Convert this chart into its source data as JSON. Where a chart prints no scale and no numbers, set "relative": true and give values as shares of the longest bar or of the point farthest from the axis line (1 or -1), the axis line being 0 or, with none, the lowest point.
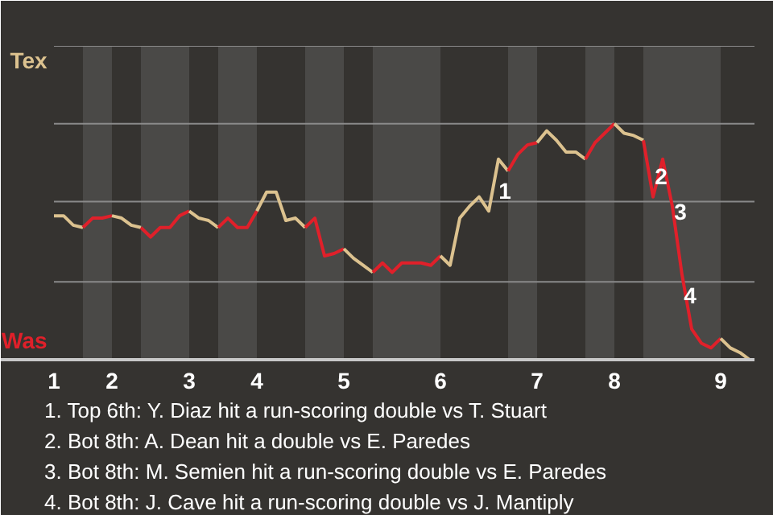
{
  "chart_data": {
    "type": "line",
    "relative": true,
    "categories": [
      "1",
      null,
      null,
      null,
      null,
      null,
      "2",
      null,
      null,
      null,
      null,
      null,
      null,
      null,
      "3",
      null,
      null,
      null,
      null,
      null,
      null,
      "4",
      null,
      null,
      null,
      null,
      null,
      null,
      null,
      null,
      "5",
      null,
      null,
      null,
      null,
      null,
      null,
      null,
      null,
      null,
      "6",
      null,
      null,
      null,
      null,
      null,
      null,
      null,
      null,
      null,
      "7",
      null,
      null,
      null,
      null,
      null,
      null,
      null,
      "8",
      null,
      null,
      null,
      null,
      null,
      null,
      null,
      null,
      null,
      null,
      "9",
      null,
      null,
      null
    ],
    "series": [
      {
        "color": "#dcc28f",
        "values": [
          0.61,
          0.61,
          0.57,
          0.56,
          null,
          null,
          null,
          null,
          null,
          null,
          null,
          null,
          null,
          null,
          null,
          null,
          null,
          null,
          null,
          null,
          null,
          null,
          null,
          null,
          null,
          null,
          null,
          null,
          null,
          null,
          null,
          null,
          null,
          null,
          null,
          null,
          null,
          null,
          null,
          null,
          null,
          null,
          null,
          null,
          null,
          null,
          null,
          null,
          null,
          null,
          null,
          null,
          null,
          null,
          null,
          null,
          null,
          null,
          null,
          null,
          null,
          null,
          null,
          null,
          null,
          null,
          null,
          null,
          null,
          null,
          null,
          null,
          null
        ]
      },
      {
        "color": "#e0202a",
        "values": [
          null,
          null,
          null,
          0.56,
          0.6,
          0.6,
          0.61,
          null,
          null,
          null,
          null,
          null,
          null,
          null,
          null,
          null,
          null,
          null,
          null,
          null,
          null,
          null,
          null,
          null,
          null,
          null,
          null,
          null,
          null,
          null,
          null,
          null,
          null,
          null,
          null,
          null,
          null,
          null,
          null,
          null,
          null,
          null,
          null,
          null,
          null,
          null,
          null,
          null,
          null,
          null,
          null,
          null,
          null,
          null,
          null,
          null,
          null,
          null,
          null,
          null,
          null,
          null,
          null,
          null,
          null,
          null,
          null,
          null,
          null,
          null,
          null,
          null,
          null
        ]
      },
      {
        "color": "#dcc28f",
        "values": [
          null,
          null,
          null,
          null,
          null,
          null,
          0.61,
          0.6,
          0.57,
          0.56,
          null,
          null,
          null,
          null,
          null,
          null,
          null,
          null,
          null,
          null,
          null,
          null,
          null,
          null,
          null,
          null,
          null,
          null,
          null,
          null,
          null,
          null,
          null,
          null,
          null,
          null,
          null,
          null,
          null,
          null,
          null,
          null,
          null,
          null,
          null,
          null,
          null,
          null,
          null,
          null,
          null,
          null,
          null,
          null,
          null,
          null,
          null,
          null,
          null,
          null,
          null,
          null,
          null,
          null,
          null,
          null,
          null,
          null,
          null,
          null,
          null,
          null,
          null
        ]
      },
      {
        "color": "#e0202a",
        "values": [
          null,
          null,
          null,
          null,
          null,
          null,
          null,
          null,
          null,
          0.56,
          0.52,
          0.56,
          0.56,
          0.61,
          0.63,
          null,
          null,
          null,
          null,
          null,
          null,
          null,
          null,
          null,
          null,
          null,
          null,
          null,
          null,
          null,
          null,
          null,
          null,
          null,
          null,
          null,
          null,
          null,
          null,
          null,
          null,
          null,
          null,
          null,
          null,
          null,
          null,
          null,
          null,
          null,
          null,
          null,
          null,
          null,
          null,
          null,
          null,
          null,
          null,
          null,
          null,
          null,
          null,
          null,
          null,
          null,
          null,
          null,
          null,
          null,
          null,
          null,
          null
        ]
      },
      {
        "color": "#dcc28f",
        "values": [
          null,
          null,
          null,
          null,
          null,
          null,
          null,
          null,
          null,
          null,
          null,
          null,
          null,
          null,
          0.63,
          0.6,
          0.59,
          0.56,
          null,
          null,
          null,
          null,
          null,
          null,
          null,
          null,
          null,
          null,
          null,
          null,
          null,
          null,
          null,
          null,
          null,
          null,
          null,
          null,
          null,
          null,
          null,
          null,
          null,
          null,
          null,
          null,
          null,
          null,
          null,
          null,
          null,
          null,
          null,
          null,
          null,
          null,
          null,
          null,
          null,
          null,
          null,
          null,
          null,
          null,
          null,
          null,
          null,
          null,
          null,
          null,
          null,
          null,
          null
        ]
      },
      {
        "color": "#e0202a",
        "values": [
          null,
          null,
          null,
          null,
          null,
          null,
          null,
          null,
          null,
          null,
          null,
          null,
          null,
          null,
          null,
          null,
          null,
          0.56,
          0.6,
          0.56,
          0.56,
          0.63,
          null,
          null,
          null,
          null,
          null,
          null,
          null,
          null,
          null,
          null,
          null,
          null,
          null,
          null,
          null,
          null,
          null,
          null,
          null,
          null,
          null,
          null,
          null,
          null,
          null,
          null,
          null,
          null,
          null,
          null,
          null,
          null,
          null,
          null,
          null,
          null,
          null,
          null,
          null,
          null,
          null,
          null,
          null,
          null,
          null,
          null,
          null,
          null,
          null,
          null,
          null
        ]
      },
      {
        "color": "#dcc28f",
        "values": [
          null,
          null,
          null,
          null,
          null,
          null,
          null,
          null,
          null,
          null,
          null,
          null,
          null,
          null,
          null,
          null,
          null,
          null,
          null,
          null,
          null,
          0.63,
          0.71,
          0.71,
          0.59,
          0.6,
          0.56,
          null,
          null,
          null,
          null,
          null,
          null,
          null,
          null,
          null,
          null,
          null,
          null,
          null,
          null,
          null,
          null,
          null,
          null,
          null,
          null,
          null,
          null,
          null,
          null,
          null,
          null,
          null,
          null,
          null,
          null,
          null,
          null,
          null,
          null,
          null,
          null,
          null,
          null,
          null,
          null,
          null,
          null,
          null,
          null,
          null,
          null
        ]
      },
      {
        "color": "#e0202a",
        "values": [
          null,
          null,
          null,
          null,
          null,
          null,
          null,
          null,
          null,
          null,
          null,
          null,
          null,
          null,
          null,
          null,
          null,
          null,
          null,
          null,
          null,
          null,
          null,
          null,
          null,
          null,
          0.56,
          0.6,
          0.44,
          0.45,
          0.47,
          null,
          null,
          null,
          null,
          null,
          null,
          null,
          null,
          null,
          null,
          null,
          null,
          null,
          null,
          null,
          null,
          null,
          null,
          null,
          null,
          null,
          null,
          null,
          null,
          null,
          null,
          null,
          null,
          null,
          null,
          null,
          null,
          null,
          null,
          null,
          null,
          null,
          null,
          null,
          null,
          null,
          null
        ]
      },
      {
        "color": "#dcc28f",
        "values": [
          null,
          null,
          null,
          null,
          null,
          null,
          null,
          null,
          null,
          null,
          null,
          null,
          null,
          null,
          null,
          null,
          null,
          null,
          null,
          null,
          null,
          null,
          null,
          null,
          null,
          null,
          null,
          null,
          null,
          null,
          0.47,
          0.43,
          0.4,
          0.37,
          null,
          null,
          null,
          null,
          null,
          null,
          null,
          null,
          null,
          null,
          null,
          null,
          null,
          null,
          null,
          null,
          null,
          null,
          null,
          null,
          null,
          null,
          null,
          null,
          null,
          null,
          null,
          null,
          null,
          null,
          null,
          null,
          null,
          null,
          null,
          null,
          null,
          null,
          null
        ]
      },
      {
        "color": "#e0202a",
        "values": [
          null,
          null,
          null,
          null,
          null,
          null,
          null,
          null,
          null,
          null,
          null,
          null,
          null,
          null,
          null,
          null,
          null,
          null,
          null,
          null,
          null,
          null,
          null,
          null,
          null,
          null,
          null,
          null,
          null,
          null,
          null,
          null,
          null,
          0.37,
          0.41,
          0.37,
          0.41,
          0.41,
          0.41,
          0.4,
          0.44,
          null,
          null,
          null,
          null,
          null,
          null,
          null,
          null,
          null,
          null,
          null,
          null,
          null,
          null,
          null,
          null,
          null,
          null,
          null,
          null,
          null,
          null,
          null,
          null,
          null,
          null,
          null,
          null,
          null,
          null,
          null,
          null
        ]
      },
      {
        "color": "#dcc28f",
        "values": [
          null,
          null,
          null,
          null,
          null,
          null,
          null,
          null,
          null,
          null,
          null,
          null,
          null,
          null,
          null,
          null,
          null,
          null,
          null,
          null,
          null,
          null,
          null,
          null,
          null,
          null,
          null,
          null,
          null,
          null,
          null,
          null,
          null,
          null,
          null,
          null,
          null,
          null,
          null,
          null,
          0.44,
          0.4,
          0.6,
          0.65,
          0.69,
          0.63,
          0.85,
          0.8,
          null,
          null,
          null,
          null,
          null,
          null,
          null,
          null,
          null,
          null,
          null,
          null,
          null,
          null,
          null,
          null,
          null,
          null,
          null,
          null,
          null,
          null,
          null,
          null,
          null
        ]
      },
      {
        "color": "#e0202a",
        "values": [
          null,
          null,
          null,
          null,
          null,
          null,
          null,
          null,
          null,
          null,
          null,
          null,
          null,
          null,
          null,
          null,
          null,
          null,
          null,
          null,
          null,
          null,
          null,
          null,
          null,
          null,
          null,
          null,
          null,
          null,
          null,
          null,
          null,
          null,
          null,
          null,
          null,
          null,
          null,
          null,
          null,
          null,
          null,
          null,
          null,
          null,
          null,
          0.8,
          0.87,
          0.91,
          0.92,
          null,
          null,
          null,
          null,
          null,
          null,
          null,
          null,
          null,
          null,
          null,
          null,
          null,
          null,
          null,
          null,
          null,
          null,
          null,
          null,
          null,
          null
        ]
      },
      {
        "color": "#dcc28f",
        "values": [
          null,
          null,
          null,
          null,
          null,
          null,
          null,
          null,
          null,
          null,
          null,
          null,
          null,
          null,
          null,
          null,
          null,
          null,
          null,
          null,
          null,
          null,
          null,
          null,
          null,
          null,
          null,
          null,
          null,
          null,
          null,
          null,
          null,
          null,
          null,
          null,
          null,
          null,
          null,
          null,
          null,
          null,
          null,
          null,
          null,
          null,
          null,
          null,
          null,
          null,
          0.92,
          0.97,
          0.93,
          0.88,
          0.88,
          0.85,
          null,
          null,
          null,
          null,
          null,
          null,
          null,
          null,
          null,
          null,
          null,
          null,
          null,
          null,
          null,
          null,
          null
        ]
      },
      {
        "color": "#e0202a",
        "values": [
          null,
          null,
          null,
          null,
          null,
          null,
          null,
          null,
          null,
          null,
          null,
          null,
          null,
          null,
          null,
          null,
          null,
          null,
          null,
          null,
          null,
          null,
          null,
          null,
          null,
          null,
          null,
          null,
          null,
          null,
          null,
          null,
          null,
          null,
          null,
          null,
          null,
          null,
          null,
          null,
          null,
          null,
          null,
          null,
          null,
          null,
          null,
          null,
          null,
          null,
          null,
          null,
          null,
          null,
          null,
          0.85,
          0.92,
          0.96,
          1,
          null,
          null,
          null,
          null,
          null,
          null,
          null,
          null,
          null,
          null,
          null,
          null,
          null,
          null
        ]
      },
      {
        "color": "#dcc28f",
        "values": [
          null,
          null,
          null,
          null,
          null,
          null,
          null,
          null,
          null,
          null,
          null,
          null,
          null,
          null,
          null,
          null,
          null,
          null,
          null,
          null,
          null,
          null,
          null,
          null,
          null,
          null,
          null,
          null,
          null,
          null,
          null,
          null,
          null,
          null,
          null,
          null,
          null,
          null,
          null,
          null,
          null,
          null,
          null,
          null,
          null,
          null,
          null,
          null,
          null,
          null,
          null,
          null,
          null,
          null,
          null,
          null,
          null,
          null,
          1,
          0.96,
          0.95,
          0.93,
          null,
          null,
          null,
          null,
          null,
          null,
          null,
          null,
          null,
          null,
          null
        ]
      },
      {
        "color": "#e0202a",
        "values": [
          null,
          null,
          null,
          null,
          null,
          null,
          null,
          null,
          null,
          null,
          null,
          null,
          null,
          null,
          null,
          null,
          null,
          null,
          null,
          null,
          null,
          null,
          null,
          null,
          null,
          null,
          null,
          null,
          null,
          null,
          null,
          null,
          null,
          null,
          null,
          null,
          null,
          null,
          null,
          null,
          null,
          null,
          null,
          null,
          null,
          null,
          null,
          null,
          null,
          null,
          null,
          null,
          null,
          null,
          null,
          null,
          null,
          null,
          null,
          null,
          null,
          0.93,
          0.69,
          0.85,
          0.65,
          0.36,
          0.13,
          0.07,
          0.05,
          0.09,
          null,
          null,
          null
        ]
      },
      {
        "color": "#dcc28f",
        "values": [
          null,
          null,
          null,
          null,
          null,
          null,
          null,
          null,
          null,
          null,
          null,
          null,
          null,
          null,
          null,
          null,
          null,
          null,
          null,
          null,
          null,
          null,
          null,
          null,
          null,
          null,
          null,
          null,
          null,
          null,
          null,
          null,
          null,
          null,
          null,
          null,
          null,
          null,
          null,
          null,
          null,
          null,
          null,
          null,
          null,
          null,
          null,
          null,
          null,
          null,
          null,
          null,
          null,
          null,
          null,
          null,
          null,
          null,
          null,
          null,
          null,
          null,
          null,
          null,
          null,
          null,
          null,
          null,
          null,
          0.09,
          0.05,
          0.03,
          0
        ]
      }
    ],
    "ref_lines": [
      {
        "axis": "y",
        "value": 0.33,
        "color": "#8a8a8a"
      },
      {
        "axis": "y",
        "value": 0.67,
        "color": "#8a8a8a"
      },
      {
        "axis": "y",
        "value": 1,
        "color": "#8a8a8a"
      },
      {
        "axis": "y",
        "value": 1.33,
        "color": "#8a8a8a"
      }
    ],
    "annotations": [
      "Tex",
      "Was",
      "1",
      "2",
      "3",
      "4",
      "1. Top 6th: Y. Diaz hit a run-scoring double vs T. Stuart",
      "2. Bot 8th: A. Dean hit a double vs E. Paredes",
      "3. Bot 8th: M. Semien hit a run-scoring double vs E. Paredes",
      "4. Bot 8th: J. Cave hit a run-scoring double vs J. Mantiply"
    ]
  }
}
